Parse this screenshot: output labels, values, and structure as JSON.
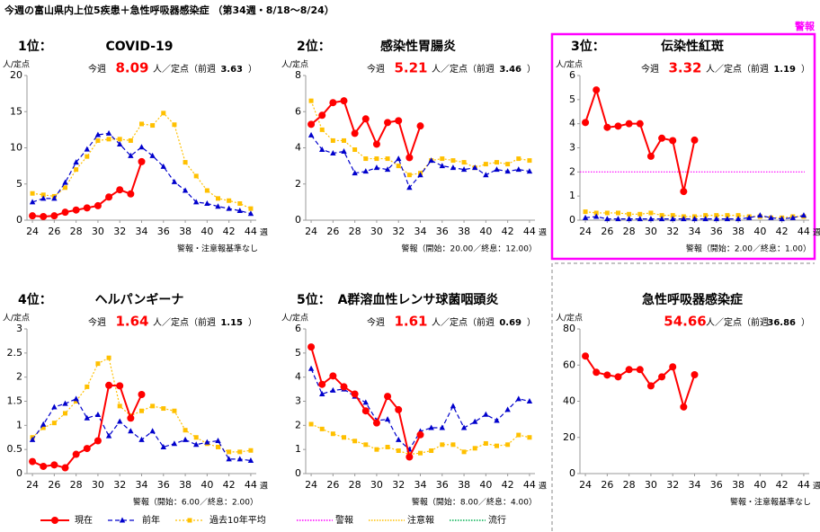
{
  "title": "今週の富山県内上位5疾患＋急性呼吸器感染症 （第34週・8/18〜8/24）",
  "alert_badge": "警報",
  "reference_lines": [
    {
      "name": "警報",
      "color": "#ff00ff"
    },
    {
      "name": "注意報",
      "color": "#ffc000"
    },
    {
      "name": "流行",
      "color": "#00b050"
    }
  ],
  "chart_data": [
    {
      "type": "line",
      "rank": "1位：",
      "title": "COVID-19",
      "this_week_label": "今週",
      "value": 8.09,
      "unit_label": "人／定点（前週",
      "prev_value": 3.63,
      "close": "）",
      "y_unit": "人/定点",
      "x_unit": "週",
      "footnote": "警報・注意報基準なし",
      "x": [
        24,
        25,
        26,
        27,
        28,
        29,
        30,
        31,
        32,
        33,
        34,
        35,
        36,
        37,
        38,
        39,
        40,
        41,
        42,
        43,
        44
      ],
      "xlim": [
        23.5,
        44.5
      ],
      "xticks": [
        24,
        26,
        28,
        30,
        32,
        34,
        36,
        38,
        40,
        42,
        44
      ],
      "ylim": [
        0,
        20
      ],
      "yticks": [
        0,
        5,
        10,
        15,
        20
      ],
      "series": [
        {
          "name": "現在",
          "color": "#ff0000",
          "marker": "circle",
          "dash": "solid",
          "values": [
            0.6,
            0.5,
            0.6,
            1.1,
            1.4,
            1.7,
            2.0,
            3.2,
            4.2,
            3.63,
            8.09,
            null,
            null,
            null,
            null,
            null,
            null,
            null,
            null,
            null,
            null
          ]
        },
        {
          "name": "前年",
          "color": "#0000cc",
          "marker": "triangle",
          "dash": "dashed",
          "values": [
            2.5,
            3.0,
            3.0,
            5.2,
            8.0,
            9.8,
            11.8,
            12.0,
            10.5,
            8.9,
            10.1,
            8.9,
            7.4,
            5.3,
            4.1,
            2.5,
            2.3,
            1.9,
            1.6,
            1.3,
            0.9
          ]
        },
        {
          "name": "過去10年平均",
          "color": "#ffc000",
          "marker": "square",
          "dash": "dotted",
          "values": [
            3.7,
            3.5,
            3.3,
            4.5,
            7.0,
            8.8,
            11.0,
            11.2,
            11.2,
            11.0,
            13.3,
            13.1,
            14.8,
            13.2,
            8.0,
            6.1,
            4.1,
            3.0,
            2.7,
            2.3,
            1.6
          ]
        }
      ]
    },
    {
      "type": "line",
      "rank": "2位：",
      "title": "感染性胃腸炎",
      "this_week_label": "今週",
      "value": 5.21,
      "unit_label": "人／定点（前週",
      "prev_value": 3.46,
      "close": "）",
      "y_unit": "人/定点",
      "x_unit": "週",
      "footnote": "警報（開始：20.00／終息：12.00）",
      "x": [
        24,
        25,
        26,
        27,
        28,
        29,
        30,
        31,
        32,
        33,
        34,
        35,
        36,
        37,
        38,
        39,
        40,
        41,
        42,
        43,
        44
      ],
      "xlim": [
        23.5,
        44.5
      ],
      "xticks": [
        24,
        26,
        28,
        30,
        32,
        34,
        36,
        38,
        40,
        42,
        44
      ],
      "ylim": [
        0,
        8
      ],
      "yticks": [
        0,
        2,
        4,
        6,
        8
      ],
      "series": [
        {
          "name": "現在",
          "color": "#ff0000",
          "marker": "circle",
          "dash": "solid",
          "values": [
            5.3,
            5.8,
            6.5,
            6.6,
            4.8,
            5.6,
            4.2,
            5.4,
            5.5,
            3.46,
            5.21,
            null,
            null,
            null,
            null,
            null,
            null,
            null,
            null,
            null,
            null
          ]
        },
        {
          "name": "前年",
          "color": "#0000cc",
          "marker": "triangle",
          "dash": "dashed",
          "values": [
            4.7,
            3.9,
            3.7,
            3.8,
            2.6,
            2.7,
            2.9,
            2.8,
            3.4,
            1.8,
            2.5,
            3.3,
            3.0,
            2.9,
            2.8,
            2.9,
            2.5,
            2.8,
            2.7,
            2.8,
            2.7
          ]
        },
        {
          "name": "過去10年平均",
          "color": "#ffc000",
          "marker": "square",
          "dash": "dotted",
          "values": [
            6.6,
            5.0,
            4.4,
            4.4,
            3.9,
            3.4,
            3.4,
            3.4,
            3.0,
            2.5,
            2.6,
            3.3,
            3.4,
            3.3,
            3.2,
            2.9,
            3.1,
            3.2,
            3.1,
            3.4,
            3.3
          ]
        }
      ]
    },
    {
      "type": "line",
      "rank": "3位：",
      "title": "伝染性紅斑",
      "this_week_label": "今週",
      "value": 3.32,
      "unit_label": "人／定点（前週",
      "prev_value": 1.19,
      "close": "）",
      "y_unit": "人/定点",
      "x_unit": "週",
      "footnote": "警報（開始：2.00／終息：1.00）",
      "highlight": "#ff00ff",
      "x": [
        24,
        25,
        26,
        27,
        28,
        29,
        30,
        31,
        32,
        33,
        34,
        35,
        36,
        37,
        38,
        39,
        40,
        41,
        42,
        43,
        44
      ],
      "xlim": [
        23.5,
        44.5
      ],
      "xticks": [
        24,
        26,
        28,
        30,
        32,
        34,
        36,
        38,
        40,
        42,
        44
      ],
      "ylim": [
        0,
        6
      ],
      "yticks": [
        0,
        1,
        2,
        3,
        4,
        5,
        6
      ],
      "hlines": [
        {
          "value": 2,
          "color": "#ff00ff"
        }
      ],
      "series": [
        {
          "name": "現在",
          "color": "#ff0000",
          "marker": "circle",
          "dash": "solid",
          "values": [
            4.05,
            5.4,
            3.85,
            3.9,
            4.0,
            4.0,
            2.65,
            3.4,
            3.3,
            1.19,
            3.32,
            null,
            null,
            null,
            null,
            null,
            null,
            null,
            null,
            null,
            null
          ]
        },
        {
          "name": "前年",
          "color": "#0000cc",
          "marker": "triangle",
          "dash": "dashed",
          "values": [
            0.1,
            0.15,
            0.05,
            0.05,
            0.05,
            0.05,
            0.05,
            0.05,
            0.05,
            0.05,
            0.05,
            0.05,
            0.05,
            0.05,
            0.05,
            0.1,
            0.2,
            0.1,
            0.05,
            0.1,
            0.2
          ]
        },
        {
          "name": "過去10年平均",
          "color": "#ffc000",
          "marker": "square",
          "dash": "dotted",
          "values": [
            0.35,
            0.3,
            0.3,
            0.3,
            0.25,
            0.25,
            0.3,
            0.2,
            0.2,
            0.15,
            0.15,
            0.2,
            0.2,
            0.2,
            0.2,
            0.15,
            0.15,
            0.1,
            0.1,
            0.15,
            0.15
          ]
        }
      ]
    },
    {
      "type": "line",
      "rank": "4位：",
      "title": "ヘルパンギーナ",
      "this_week_label": "今週",
      "value": 1.64,
      "unit_label": "人／定点（前週",
      "prev_value": 1.15,
      "close": "）",
      "y_unit": "人/定点",
      "x_unit": "週",
      "footnote": "警報（開始：6.00／終息：2.00）",
      "x": [
        24,
        25,
        26,
        27,
        28,
        29,
        30,
        31,
        32,
        33,
        34,
        35,
        36,
        37,
        38,
        39,
        40,
        41,
        42,
        43,
        44
      ],
      "xlim": [
        23.5,
        44.5
      ],
      "xticks": [
        24,
        26,
        28,
        30,
        32,
        34,
        36,
        38,
        40,
        42,
        44
      ],
      "ylim": [
        0,
        3
      ],
      "yticks": [
        0,
        0.5,
        1,
        1.5,
        2,
        2.5,
        3
      ],
      "series": [
        {
          "name": "現在",
          "color": "#ff0000",
          "marker": "circle",
          "dash": "solid",
          "values": [
            0.25,
            0.15,
            0.18,
            0.12,
            0.4,
            0.52,
            0.68,
            1.83,
            1.82,
            1.15,
            1.64,
            null,
            null,
            null,
            null,
            null,
            null,
            null,
            null,
            null,
            null
          ]
        },
        {
          "name": "前年",
          "color": "#0000cc",
          "marker": "triangle",
          "dash": "dashed",
          "values": [
            0.7,
            1.02,
            1.38,
            1.45,
            1.55,
            1.15,
            1.22,
            0.78,
            1.08,
            0.88,
            0.7,
            0.88,
            0.55,
            0.62,
            0.7,
            0.6,
            0.65,
            0.68,
            0.3,
            0.3,
            0.27
          ]
        },
        {
          "name": "過去10年平均",
          "color": "#ffc000",
          "marker": "square",
          "dash": "dotted",
          "values": [
            0.75,
            0.95,
            1.05,
            1.25,
            1.5,
            1.8,
            2.28,
            2.4,
            1.4,
            1.2,
            1.3,
            1.4,
            1.35,
            1.3,
            0.9,
            0.75,
            0.62,
            0.55,
            0.45,
            0.45,
            0.48
          ]
        }
      ]
    },
    {
      "type": "line",
      "rank": "5位：",
      "title": "A群溶血性レンサ球菌咽頭炎",
      "this_week_label": "今週",
      "value": 1.61,
      "unit_label": "人／定点（前週",
      "prev_value": 0.69,
      "close": "）",
      "y_unit": "人/定点",
      "x_unit": "週",
      "footnote": "警報（開始：8.00／終息：4.00）",
      "x": [
        24,
        25,
        26,
        27,
        28,
        29,
        30,
        31,
        32,
        33,
        34,
        35,
        36,
        37,
        38,
        39,
        40,
        41,
        42,
        43,
        44
      ],
      "xlim": [
        23.5,
        44.5
      ],
      "xticks": [
        24,
        26,
        28,
        30,
        32,
        34,
        36,
        38,
        40,
        42,
        44
      ],
      "ylim": [
        0,
        6
      ],
      "yticks": [
        0,
        1,
        2,
        3,
        4,
        5,
        6
      ],
      "series": [
        {
          "name": "現在",
          "color": "#ff0000",
          "marker": "circle",
          "dash": "solid",
          "values": [
            5.25,
            3.7,
            4.05,
            3.6,
            3.3,
            2.6,
            2.1,
            3.2,
            2.65,
            0.69,
            1.61,
            null,
            null,
            null,
            null,
            null,
            null,
            null,
            null,
            null,
            null
          ]
        },
        {
          "name": "前年",
          "color": "#0000cc",
          "marker": "triangle",
          "dash": "dashed",
          "values": [
            4.35,
            3.3,
            3.45,
            3.5,
            3.2,
            2.95,
            2.2,
            2.25,
            1.4,
            1.0,
            1.75,
            1.9,
            1.9,
            2.8,
            1.9,
            2.15,
            2.45,
            2.2,
            2.65,
            3.1,
            3.0
          ]
        },
        {
          "name": "過去10年平均",
          "color": "#ffc000",
          "marker": "square",
          "dash": "dotted",
          "values": [
            2.05,
            1.85,
            1.65,
            1.5,
            1.35,
            1.2,
            1.0,
            1.1,
            0.95,
            0.8,
            0.85,
            0.95,
            1.2,
            1.2,
            0.9,
            1.05,
            1.25,
            1.15,
            1.2,
            1.6,
            1.5
          ]
        }
      ]
    },
    {
      "type": "line",
      "title": "急性呼吸器感染症",
      "this_week_label": "",
      "value": 54.66,
      "unit_label": "人／定点（前週",
      "prev_value": 36.86,
      "close": "）",
      "y_unit": "人/定点",
      "x_unit": "週",
      "footnote": "警報・注意報基準なし",
      "border": "dashed",
      "x": [
        24,
        25,
        26,
        27,
        28,
        29,
        30,
        31,
        32,
        33,
        34,
        35,
        36,
        37,
        38,
        39,
        40,
        41,
        42,
        43,
        44
      ],
      "xlim": [
        23.5,
        44.5
      ],
      "xticks": [
        24,
        26,
        28,
        30,
        32,
        34,
        36,
        38,
        40,
        42,
        44
      ],
      "ylim": [
        0,
        80
      ],
      "yticks": [
        0,
        20,
        40,
        60,
        80
      ],
      "series": [
        {
          "name": "現在",
          "color": "#ff0000",
          "marker": "circle",
          "dash": "solid",
          "values": [
            65,
            56,
            54.5,
            53.5,
            57.5,
            57.5,
            48.5,
            53.5,
            59,
            36.86,
            54.66,
            null,
            null,
            null,
            null,
            null,
            null,
            null,
            null,
            null,
            null
          ]
        }
      ]
    }
  ]
}
